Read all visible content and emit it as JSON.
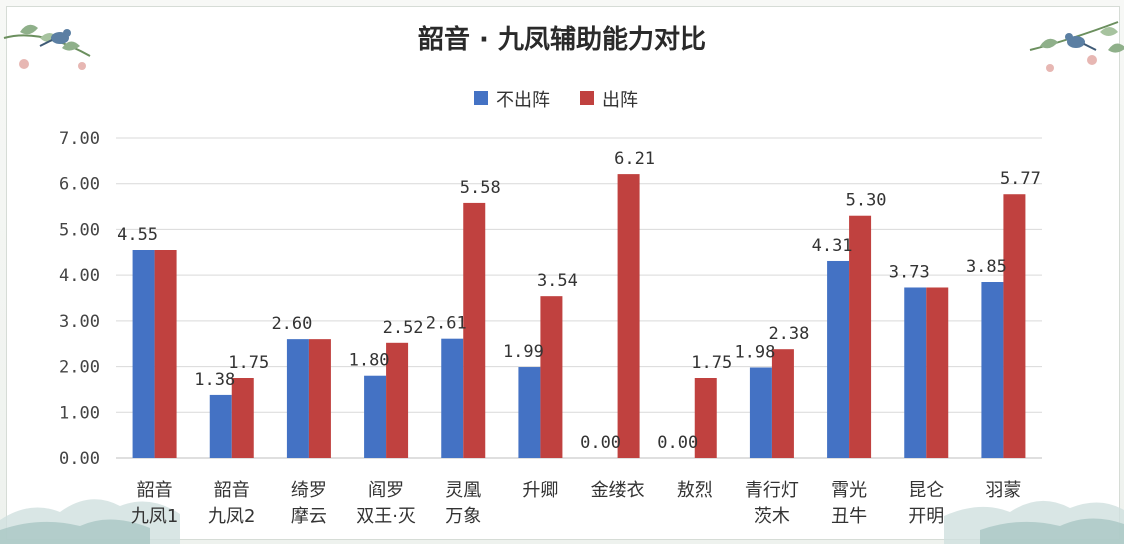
{
  "chart_data": {
    "type": "bar",
    "title": "韶音 · 九凤辅助能力对比",
    "categories": [
      [
        "韶音",
        "九凤1"
      ],
      [
        "韶音",
        "九凤2"
      ],
      [
        "绮罗",
        "摩云"
      ],
      [
        "阎罗",
        "双王·灭"
      ],
      [
        "灵凰",
        "万象"
      ],
      [
        "升卿"
      ],
      [
        "金缕衣"
      ],
      [
        "敖烈"
      ],
      [
        "青行灯",
        "茨木"
      ],
      [
        "霄光",
        "丑牛"
      ],
      [
        "昆仑",
        "开明"
      ],
      [
        "羽蒙"
      ]
    ],
    "series": [
      {
        "name": "不出阵",
        "color": "#4472c4",
        "values": [
          4.55,
          1.38,
          2.6,
          1.8,
          2.61,
          1.99,
          0.0,
          0.0,
          1.98,
          4.31,
          3.73,
          3.85
        ],
        "labels": [
          "4.55",
          "1.38",
          "2.60",
          "1.80",
          "2.61",
          "1.99",
          "0.00",
          "0.00",
          "1.98",
          "4.31",
          "3.73",
          "3.85"
        ]
      },
      {
        "name": "出阵",
        "color": "#c0413f",
        "values": [
          4.55,
          1.75,
          2.6,
          2.52,
          5.58,
          3.54,
          6.21,
          1.75,
          2.38,
          5.3,
          3.73,
          5.77
        ],
        "labels": [
          "",
          "1.75",
          "",
          "2.52",
          "5.58",
          "3.54",
          "6.21",
          "1.75",
          "2.38",
          "5.30",
          "",
          "5.77"
        ]
      }
    ],
    "yticks": [
      "0.00",
      "1.00",
      "2.00",
      "3.00",
      "4.00",
      "5.00",
      "6.00",
      "7.00"
    ],
    "ylim": [
      0,
      7
    ],
    "grid": true,
    "legend_position": "top"
  }
}
